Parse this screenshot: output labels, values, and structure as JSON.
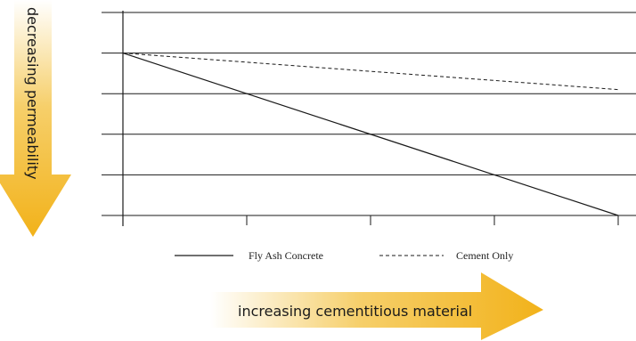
{
  "chart_data": {
    "type": "line",
    "title": "",
    "xlabel": "increasing cementitious material",
    "ylabel": "decreasing permeability",
    "x": [
      0,
      1,
      2,
      3,
      4
    ],
    "xlim": [
      0,
      4
    ],
    "ylim": [
      0,
      5
    ],
    "grid": true,
    "series": [
      {
        "name": "Fly Ash Concrete",
        "style": "solid",
        "x": [
          0,
          4
        ],
        "y": [
          4,
          0
        ]
      },
      {
        "name": "Cement Only",
        "style": "dashed",
        "x": [
          0,
          4
        ],
        "y": [
          4,
          3.1
        ]
      }
    ],
    "legend": {
      "position": "bottom",
      "entries": [
        "Fly Ash Concrete",
        "Cement Only"
      ]
    },
    "colors": {
      "arrow": "#f2b21a",
      "line": "#1a1a1a"
    }
  }
}
